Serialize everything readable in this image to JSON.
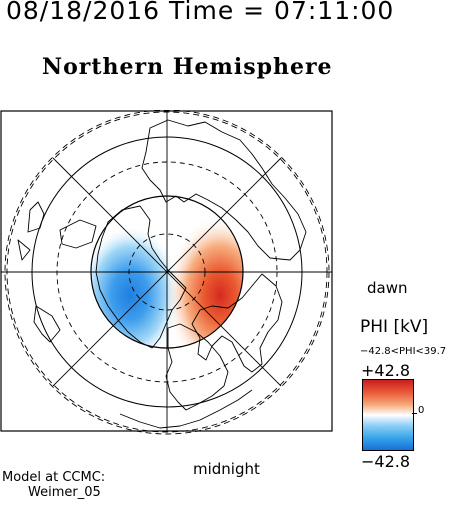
{
  "header": {
    "timestamp": "08/18/2016 Time = 07:11:00",
    "title": "Northern Hemisphere"
  },
  "map": {
    "projection": "polar-stereographic",
    "hemisphere": "north",
    "label_dawn": "dawn",
    "label_midnight": "midnight",
    "potential_pattern": {
      "dusk_cell": {
        "sign": "negative",
        "color": "#1f7fe0"
      },
      "dawn_cell": {
        "sign": "positive",
        "color": "#d62a20"
      }
    }
  },
  "colorbar": {
    "title": "PHI [kV]",
    "range_text": "−42.8<PHI<39.7",
    "max_label": "+42.8",
    "min_label": "−42.8",
    "zero_label": "0",
    "colors": [
      "#c81e1e",
      "#ea5a3a",
      "#f5a878",
      "#ffffff",
      "#8fd0f5",
      "#3aa6ea",
      "#1670d8"
    ]
  },
  "credit": {
    "line1": "Model at CCMC:",
    "line2": "Weimer_05"
  }
}
